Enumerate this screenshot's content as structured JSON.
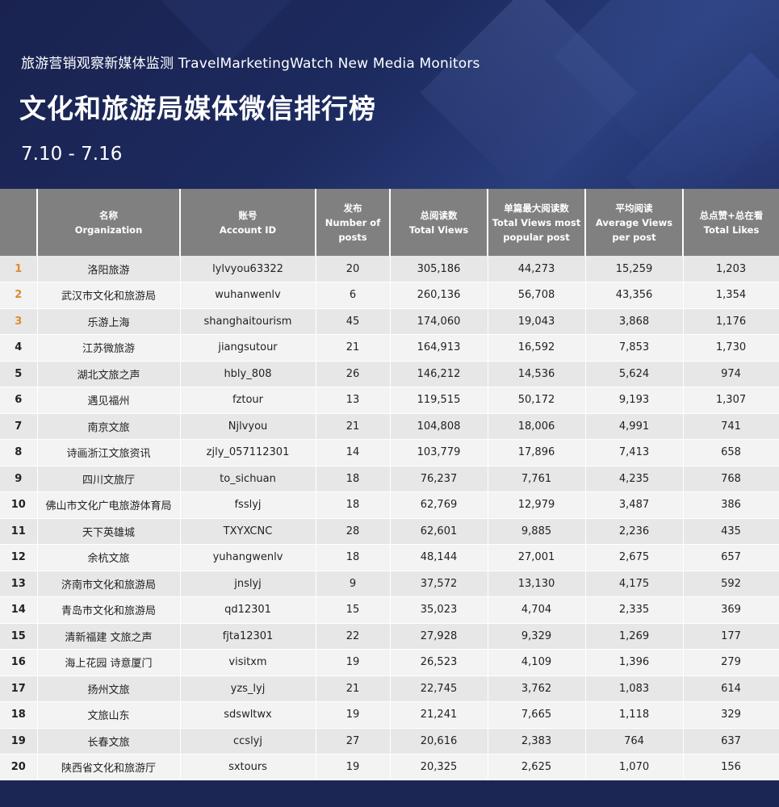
{
  "header": {
    "subtitle": "旅游营销观察新媒体监测 TravelMarketingWatch New Media Monitors",
    "title": "文化和旅游局媒体微信排行榜",
    "date": "7.10 - 7.16"
  },
  "columns": [
    {
      "zh": "",
      "en": ""
    },
    {
      "zh": "名称",
      "en": "Organization"
    },
    {
      "zh": "账号",
      "en": "Account ID"
    },
    {
      "zh": "发布",
      "en": "Number of posts"
    },
    {
      "zh": "总阅读数",
      "en": "Total Views"
    },
    {
      "zh": "单篇最大阅读数",
      "en": "Total Views most popular post"
    },
    {
      "zh": "平均阅读",
      "en": "Average Views per post"
    },
    {
      "zh": "总点赞+总在看",
      "en": "Total Likes"
    }
  ],
  "rows": [
    {
      "rank": "1",
      "org": "洛阳旅游",
      "account": "lylvyou63322",
      "posts": "20",
      "views": "305,186",
      "max": "44,273",
      "avg": "15,259",
      "likes": "1,203"
    },
    {
      "rank": "2",
      "org": "武汉市文化和旅游局",
      "account": "wuhanwenlv",
      "posts": "6",
      "views": "260,136",
      "max": "56,708",
      "avg": "43,356",
      "likes": "1,354"
    },
    {
      "rank": "3",
      "org": "乐游上海",
      "account": "shanghaitourism",
      "posts": "45",
      "views": "174,060",
      "max": "19,043",
      "avg": "3,868",
      "likes": "1,176"
    },
    {
      "rank": "4",
      "org": "江苏微旅游",
      "account": "jiangsutour",
      "posts": "21",
      "views": "164,913",
      "max": "16,592",
      "avg": "7,853",
      "likes": "1,730"
    },
    {
      "rank": "5",
      "org": "湖北文旅之声",
      "account": "hbly_808",
      "posts": "26",
      "views": "146,212",
      "max": "14,536",
      "avg": "5,624",
      "likes": "974"
    },
    {
      "rank": "6",
      "org": "遇见福州",
      "account": "fztour",
      "posts": "13",
      "views": "119,515",
      "max": "50,172",
      "avg": "9,193",
      "likes": "1,307"
    },
    {
      "rank": "7",
      "org": "南京文旅",
      "account": "Njlvyou",
      "posts": "21",
      "views": "104,808",
      "max": "18,006",
      "avg": "4,991",
      "likes": "741"
    },
    {
      "rank": "8",
      "org": "诗画浙江文旅资讯",
      "account": "zjly_057112301",
      "posts": "14",
      "views": "103,779",
      "max": "17,896",
      "avg": "7,413",
      "likes": "658"
    },
    {
      "rank": "9",
      "org": "四川文旅厅",
      "account": "to_sichuan",
      "posts": "18",
      "views": "76,237",
      "max": "7,761",
      "avg": "4,235",
      "likes": "768"
    },
    {
      "rank": "10",
      "org": "佛山市文化广电旅游体育局",
      "account": "fsslyj",
      "posts": "18",
      "views": "62,769",
      "max": "12,979",
      "avg": "3,487",
      "likes": "386"
    },
    {
      "rank": "11",
      "org": "天下英雄城",
      "account": "TXYXCNC",
      "posts": "28",
      "views": "62,601",
      "max": "9,885",
      "avg": "2,236",
      "likes": "435"
    },
    {
      "rank": "12",
      "org": "余杭文旅",
      "account": "yuhangwenlv",
      "posts": "18",
      "views": "48,144",
      "max": "27,001",
      "avg": "2,675",
      "likes": "657"
    },
    {
      "rank": "13",
      "org": "济南市文化和旅游局",
      "account": "jnslyj",
      "posts": "9",
      "views": "37,572",
      "max": "13,130",
      "avg": "4,175",
      "likes": "592"
    },
    {
      "rank": "14",
      "org": "青岛市文化和旅游局",
      "account": "qd12301",
      "posts": "15",
      "views": "35,023",
      "max": "4,704",
      "avg": "2,335",
      "likes": "369"
    },
    {
      "rank": "15",
      "org": "清新福建 文旅之声",
      "account": "fjta12301",
      "posts": "22",
      "views": "27,928",
      "max": "9,329",
      "avg": "1,269",
      "likes": "177"
    },
    {
      "rank": "16",
      "org": "海上花园 诗意厦门",
      "account": "visitxm",
      "posts": "19",
      "views": "26,523",
      "max": "4,109",
      "avg": "1,396",
      "likes": "279"
    },
    {
      "rank": "17",
      "org": "扬州文旅",
      "account": "yzs_lyj",
      "posts": "21",
      "views": "22,745",
      "max": "3,762",
      "avg": "1,083",
      "likes": "614"
    },
    {
      "rank": "18",
      "org": "文旅山东",
      "account": "sdswltwx",
      "posts": "19",
      "views": "21,241",
      "max": "7,665",
      "avg": "1,118",
      "likes": "329"
    },
    {
      "rank": "19",
      "org": "长春文旅",
      "account": "ccslyj",
      "posts": "27",
      "views": "20,616",
      "max": "2,383",
      "avg": "764",
      "likes": "637"
    },
    {
      "rank": "20",
      "org": "陕西省文化和旅游厅",
      "account": "sxtours",
      "posts": "19",
      "views": "20,325",
      "max": "2,625",
      "avg": "1,070",
      "likes": "156"
    }
  ],
  "colors": {
    "header_bg": "#1c2a5e",
    "column_header_bg": "#808080",
    "top_rank": "#e08a2e"
  }
}
